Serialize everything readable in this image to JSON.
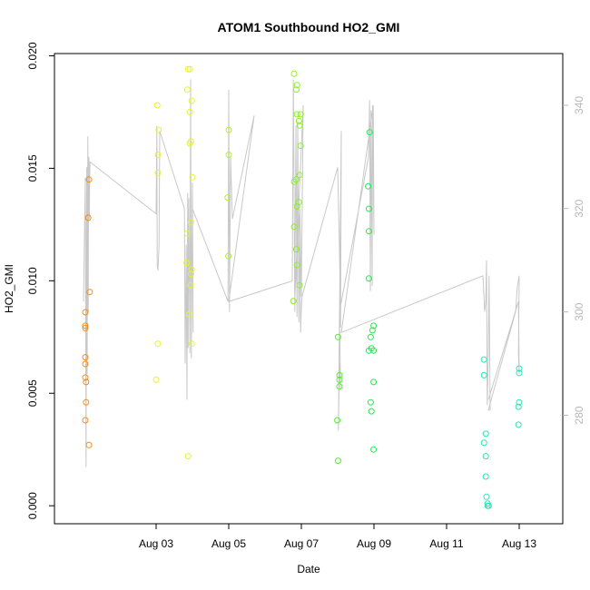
{
  "chart_data": {
    "type": "scatter",
    "title": "ATOM1 Southbound HO2_GMI",
    "xlabel": "Date",
    "ylabel": "HO2_GMI",
    "y2label": "",
    "xlim": [
      -1.8,
      12.2
    ],
    "ylim": [
      -0.0008,
      0.0201
    ],
    "y2lim": [
      259,
      350
    ],
    "x_ticks": [
      {
        "value": 1,
        "label": "Aug 03"
      },
      {
        "value": 3,
        "label": "Aug 05"
      },
      {
        "value": 5,
        "label": "Aug 07"
      },
      {
        "value": 7,
        "label": "Aug 09"
      },
      {
        "value": 9,
        "label": "Aug 11"
      },
      {
        "value": 11,
        "label": "Aug 13"
      }
    ],
    "y_ticks": [
      {
        "value": 0.0,
        "label": "0.000"
      },
      {
        "value": 0.005,
        "label": "0.005"
      },
      {
        "value": 0.01,
        "label": "0.010"
      },
      {
        "value": 0.015,
        "label": "0.015"
      },
      {
        "value": 0.02,
        "label": "0.020"
      }
    ],
    "y2_ticks": [
      {
        "value": 280,
        "label": "280"
      },
      {
        "value": 300,
        "label": "300"
      },
      {
        "value": 320,
        "label": "320"
      },
      {
        "value": 340,
        "label": "340"
      }
    ],
    "grid": false,
    "line_color": "#c8c8c8",
    "points": [
      {
        "x": -0.95,
        "y": 0.0079,
        "color": "#f08c1e"
      },
      {
        "x": -0.95,
        "y": 0.008,
        "color": "#f08c1e"
      },
      {
        "x": -0.95,
        "y": 0.0086,
        "color": "#f08c1e"
      },
      {
        "x": -0.95,
        "y": 0.0066,
        "color": "#f08c1e"
      },
      {
        "x": -0.95,
        "y": 0.0063,
        "color": "#f08c1e"
      },
      {
        "x": -0.95,
        "y": 0.0057,
        "color": "#f08c1e"
      },
      {
        "x": -0.93,
        "y": 0.0055,
        "color": "#f08c1e"
      },
      {
        "x": -0.93,
        "y": 0.0046,
        "color": "#f08c1e"
      },
      {
        "x": -0.95,
        "y": 0.0038,
        "color": "#f08c1e"
      },
      {
        "x": -0.85,
        "y": 0.0145,
        "color": "#f08c1e"
      },
      {
        "x": -0.87,
        "y": 0.0128,
        "color": "#f08c1e"
      },
      {
        "x": -0.83,
        "y": 0.0095,
        "color": "#f08c1e"
      },
      {
        "x": -0.85,
        "y": 0.0027,
        "color": "#f08c1e"
      },
      {
        "x": 1.03,
        "y": 0.0178,
        "color": "#f0f028"
      },
      {
        "x": 1.07,
        "y": 0.0167,
        "color": "#f0f028"
      },
      {
        "x": 1.05,
        "y": 0.0156,
        "color": "#f0f028"
      },
      {
        "x": 1.05,
        "y": 0.0148,
        "color": "#f0f028"
      },
      {
        "x": 1.05,
        "y": 0.0072,
        "color": "#f0f028"
      },
      {
        "x": 1.0,
        "y": 0.0056,
        "color": "#f0f028"
      },
      {
        "x": 1.88,
        "y": 0.0194,
        "color": "#e6f52a"
      },
      {
        "x": 1.93,
        "y": 0.0194,
        "color": "#e6f52a"
      },
      {
        "x": 1.86,
        "y": 0.0185,
        "color": "#e6f52a"
      },
      {
        "x": 1.98,
        "y": 0.018,
        "color": "#e6f52a"
      },
      {
        "x": 1.93,
        "y": 0.0175,
        "color": "#e6f52a"
      },
      {
        "x": 1.96,
        "y": 0.0162,
        "color": "#e6f52a"
      },
      {
        "x": 1.93,
        "y": 0.0161,
        "color": "#e6f52a"
      },
      {
        "x": 2.0,
        "y": 0.0146,
        "color": "#e6f52a"
      },
      {
        "x": 1.96,
        "y": 0.0126,
        "color": "#e6f52a"
      },
      {
        "x": 1.86,
        "y": 0.0121,
        "color": "#e6f52a"
      },
      {
        "x": 1.84,
        "y": 0.0108,
        "color": "#e6f52a"
      },
      {
        "x": 1.98,
        "y": 0.0105,
        "color": "#e6f52a"
      },
      {
        "x": 1.96,
        "y": 0.0103,
        "color": "#e6f52a"
      },
      {
        "x": 1.95,
        "y": 0.0098,
        "color": "#e6f52a"
      },
      {
        "x": 1.91,
        "y": 0.0085,
        "color": "#e6f52a"
      },
      {
        "x": 1.98,
        "y": 0.0072,
        "color": "#e6f52a"
      },
      {
        "x": 1.88,
        "y": 0.0022,
        "color": "#e6f52a"
      },
      {
        "x": 3.0,
        "y": 0.0167,
        "color": "#b4f028"
      },
      {
        "x": 3.0,
        "y": 0.0156,
        "color": "#b4f028"
      },
      {
        "x": 2.97,
        "y": 0.0137,
        "color": "#b4f028"
      },
      {
        "x": 2.99,
        "y": 0.0111,
        "color": "#b4f028"
      },
      {
        "x": 4.8,
        "y": 0.0192,
        "color": "#8cf028"
      },
      {
        "x": 4.88,
        "y": 0.0187,
        "color": "#8cf028"
      },
      {
        "x": 4.86,
        "y": 0.0185,
        "color": "#8cf028"
      },
      {
        "x": 4.88,
        "y": 0.0174,
        "color": "#8cf028"
      },
      {
        "x": 4.98,
        "y": 0.0174,
        "color": "#8cf028"
      },
      {
        "x": 4.93,
        "y": 0.0171,
        "color": "#8cf028"
      },
      {
        "x": 4.95,
        "y": 0.0169,
        "color": "#8cf028"
      },
      {
        "x": 4.98,
        "y": 0.016,
        "color": "#8cf028"
      },
      {
        "x": 4.95,
        "y": 0.0147,
        "color": "#8cf028"
      },
      {
        "x": 4.86,
        "y": 0.0145,
        "color": "#8cf028"
      },
      {
        "x": 4.8,
        "y": 0.0144,
        "color": "#8cf028"
      },
      {
        "x": 4.93,
        "y": 0.0135,
        "color": "#8cf028"
      },
      {
        "x": 4.88,
        "y": 0.0133,
        "color": "#8cf028"
      },
      {
        "x": 4.8,
        "y": 0.0124,
        "color": "#8cf028"
      },
      {
        "x": 4.86,
        "y": 0.0114,
        "color": "#8cf028"
      },
      {
        "x": 4.88,
        "y": 0.0107,
        "color": "#8cf028"
      },
      {
        "x": 4.95,
        "y": 0.0098,
        "color": "#8cf028"
      },
      {
        "x": 4.78,
        "y": 0.0091,
        "color": "#8cf028"
      },
      {
        "x": 6.01,
        "y": 0.0075,
        "color": "#50f028"
      },
      {
        "x": 6.05,
        "y": 0.0058,
        "color": "#50f028"
      },
      {
        "x": 6.05,
        "y": 0.0056,
        "color": "#50f028"
      },
      {
        "x": 6.05,
        "y": 0.0053,
        "color": "#50f028"
      },
      {
        "x": 5.99,
        "y": 0.0038,
        "color": "#50f028"
      },
      {
        "x": 6.01,
        "y": 0.002,
        "color": "#50f028"
      },
      {
        "x": 6.88,
        "y": 0.0166,
        "color": "#28e650"
      },
      {
        "x": 6.84,
        "y": 0.0142,
        "color": "#28e650"
      },
      {
        "x": 6.86,
        "y": 0.0132,
        "color": "#28e650"
      },
      {
        "x": 6.86,
        "y": 0.0122,
        "color": "#28e650"
      },
      {
        "x": 6.86,
        "y": 0.0101,
        "color": "#28e650"
      },
      {
        "x": 6.99,
        "y": 0.008,
        "color": "#28e650"
      },
      {
        "x": 6.96,
        "y": 0.0078,
        "color": "#28e650"
      },
      {
        "x": 6.91,
        "y": 0.0075,
        "color": "#28e650"
      },
      {
        "x": 6.93,
        "y": 0.007,
        "color": "#28e650"
      },
      {
        "x": 6.86,
        "y": 0.0069,
        "color": "#28e650"
      },
      {
        "x": 6.99,
        "y": 0.0069,
        "color": "#28e650"
      },
      {
        "x": 6.99,
        "y": 0.0055,
        "color": "#28e650"
      },
      {
        "x": 6.91,
        "y": 0.0046,
        "color": "#28e650"
      },
      {
        "x": 6.93,
        "y": 0.0042,
        "color": "#28e650"
      },
      {
        "x": 6.99,
        "y": 0.0025,
        "color": "#28e650"
      },
      {
        "x": 10.03,
        "y": 0.0065,
        "color": "#28e6b4"
      },
      {
        "x": 10.03,
        "y": 0.0058,
        "color": "#28e6b4"
      },
      {
        "x": 10.08,
        "y": 0.0032,
        "color": "#28e6b4"
      },
      {
        "x": 10.03,
        "y": 0.0028,
        "color": "#28e6b4"
      },
      {
        "x": 10.08,
        "y": 0.0022,
        "color": "#28e6b4"
      },
      {
        "x": 10.08,
        "y": 0.0013,
        "color": "#28e6b4"
      },
      {
        "x": 10.1,
        "y": 0.0004,
        "color": "#28e6b4"
      },
      {
        "x": 10.13,
        "y": 0.0001,
        "color": "#28e6b4"
      },
      {
        "x": 10.16,
        "y": 0.0,
        "color": "#28e6b4"
      },
      {
        "x": 10.13,
        "y": 0.0,
        "color": "#28e6b4"
      },
      {
        "x": 11.0,
        "y": 0.0061,
        "color": "#28e6b4"
      },
      {
        "x": 11.0,
        "y": 0.0059,
        "color": "#28e6b4"
      },
      {
        "x": 11.0,
        "y": 0.0046,
        "color": "#28e6b4"
      },
      {
        "x": 10.98,
        "y": 0.0044,
        "color": "#28e6b4"
      },
      {
        "x": 10.98,
        "y": 0.0036,
        "color": "#28e6b4"
      }
    ],
    "line_y2": [
      [
        -1.0,
        302
      ],
      [
        -0.95,
        326
      ],
      [
        -0.93,
        270
      ],
      [
        -0.92,
        302
      ],
      [
        -0.91,
        328
      ],
      [
        -0.9,
        288
      ],
      [
        -0.88,
        334
      ],
      [
        -0.87,
        300
      ],
      [
        -0.86,
        327
      ],
      [
        -0.85,
        330
      ],
      [
        -0.84,
        318
      ],
      [
        -0.83,
        326
      ],
      [
        -0.82,
        329
      ],
      [
        1.0,
        319
      ],
      [
        1.02,
        336
      ],
      [
        1.03,
        309
      ],
      [
        1.05,
        308
      ],
      [
        1.08,
        313
      ],
      [
        1.1,
        335
      ],
      [
        1.78,
        320
      ],
      [
        1.8,
        290
      ],
      [
        1.83,
        313
      ],
      [
        1.85,
        283
      ],
      [
        1.87,
        323
      ],
      [
        1.88,
        293
      ],
      [
        1.9,
        322
      ],
      [
        1.93,
        292
      ],
      [
        1.95,
        345
      ],
      [
        1.97,
        291
      ],
      [
        2.0,
        325
      ],
      [
        2.02,
        296
      ],
      [
        2.0,
        320
      ],
      [
        2.98,
        302
      ],
      [
        3.0,
        343
      ],
      [
        3.02,
        300
      ],
      [
        3.05,
        330
      ],
      [
        3.1,
        318
      ],
      [
        3.7,
        338
      ],
      [
        3.0,
        302
      ],
      [
        4.75,
        306
      ],
      [
        4.78,
        345
      ],
      [
        4.82,
        300
      ],
      [
        4.85,
        336
      ],
      [
        4.88,
        299
      ],
      [
        4.9,
        337
      ],
      [
        4.93,
        298
      ],
      [
        4.96,
        320
      ],
      [
        5.0,
        303
      ],
      [
        5.05,
        340
      ],
      [
        4.82,
        303
      ],
      [
        4.95,
        319
      ],
      [
        4.98,
        296
      ],
      [
        5.0,
        301
      ],
      [
        5.02,
        303
      ],
      [
        6.0,
        328
      ],
      [
        6.05,
        312
      ],
      [
        6.08,
        297
      ],
      [
        6.1,
        335
      ],
      [
        6.02,
        277
      ],
      [
        6.05,
        290
      ],
      [
        6.08,
        285
      ],
      [
        6.05,
        300
      ],
      [
        6.85,
        330
      ],
      [
        6.88,
        341
      ],
      [
        6.9,
        304
      ],
      [
        6.92,
        339
      ],
      [
        6.95,
        305
      ],
      [
        6.96,
        340
      ],
      [
        7.0,
        315
      ],
      [
        6.98,
        340
      ],
      [
        6.1,
        296
      ],
      [
        10.0,
        307
      ],
      [
        10.05,
        300
      ],
      [
        10.08,
        302
      ],
      [
        10.1,
        310
      ],
      [
        10.12,
        282
      ],
      [
        10.15,
        292
      ],
      [
        10.17,
        307
      ],
      [
        10.2,
        281
      ],
      [
        10.15,
        281
      ],
      [
        10.9,
        300
      ],
      [
        10.95,
        305
      ],
      [
        11.0,
        307
      ],
      [
        10.98,
        292
      ],
      [
        11.0,
        288
      ],
      [
        10.98,
        302
      ],
      [
        10.15,
        283
      ]
    ]
  }
}
